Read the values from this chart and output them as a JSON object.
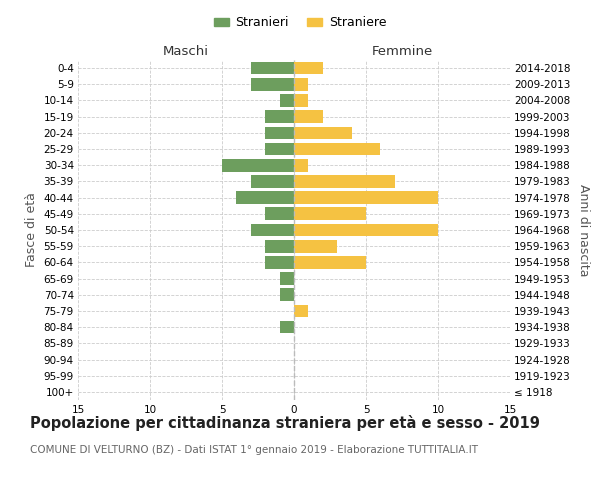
{
  "age_groups": [
    "100+",
    "95-99",
    "90-94",
    "85-89",
    "80-84",
    "75-79",
    "70-74",
    "65-69",
    "60-64",
    "55-59",
    "50-54",
    "45-49",
    "40-44",
    "35-39",
    "30-34",
    "25-29",
    "20-24",
    "15-19",
    "10-14",
    "5-9",
    "0-4"
  ],
  "birth_years": [
    "≤ 1918",
    "1919-1923",
    "1924-1928",
    "1929-1933",
    "1934-1938",
    "1939-1943",
    "1944-1948",
    "1949-1953",
    "1954-1958",
    "1959-1963",
    "1964-1968",
    "1969-1973",
    "1974-1978",
    "1979-1983",
    "1984-1988",
    "1989-1993",
    "1994-1998",
    "1999-2003",
    "2004-2008",
    "2009-2013",
    "2014-2018"
  ],
  "maschi": [
    0,
    0,
    0,
    0,
    1,
    0,
    1,
    1,
    2,
    2,
    3,
    2,
    4,
    3,
    5,
    2,
    2,
    2,
    1,
    3,
    3
  ],
  "femmine": [
    0,
    0,
    0,
    0,
    0,
    1,
    0,
    0,
    5,
    3,
    10,
    5,
    10,
    7,
    1,
    6,
    4,
    2,
    1,
    1,
    2
  ],
  "male_color": "#6d9e5e",
  "female_color": "#f5c242",
  "bar_height": 0.78,
  "xlim": 15,
  "title": "Popolazione per cittadinanza straniera per età e sesso - 2019",
  "subtitle": "COMUNE DI VELTURNO (BZ) - Dati ISTAT 1° gennaio 2019 - Elaborazione TUTTITALIA.IT",
  "ylabel_left": "Fasce di età",
  "ylabel_right": "Anni di nascita",
  "legend_stranieri": "Stranieri",
  "legend_straniere": "Straniere",
  "maschi_label": "Maschi",
  "femmine_label": "Femmine",
  "background_color": "#ffffff",
  "grid_color": "#cccccc",
  "grid_style": "--",
  "title_fontsize": 10.5,
  "subtitle_fontsize": 7.5,
  "axis_label_fontsize": 9,
  "tick_fontsize": 7.5,
  "legend_fontsize": 9
}
